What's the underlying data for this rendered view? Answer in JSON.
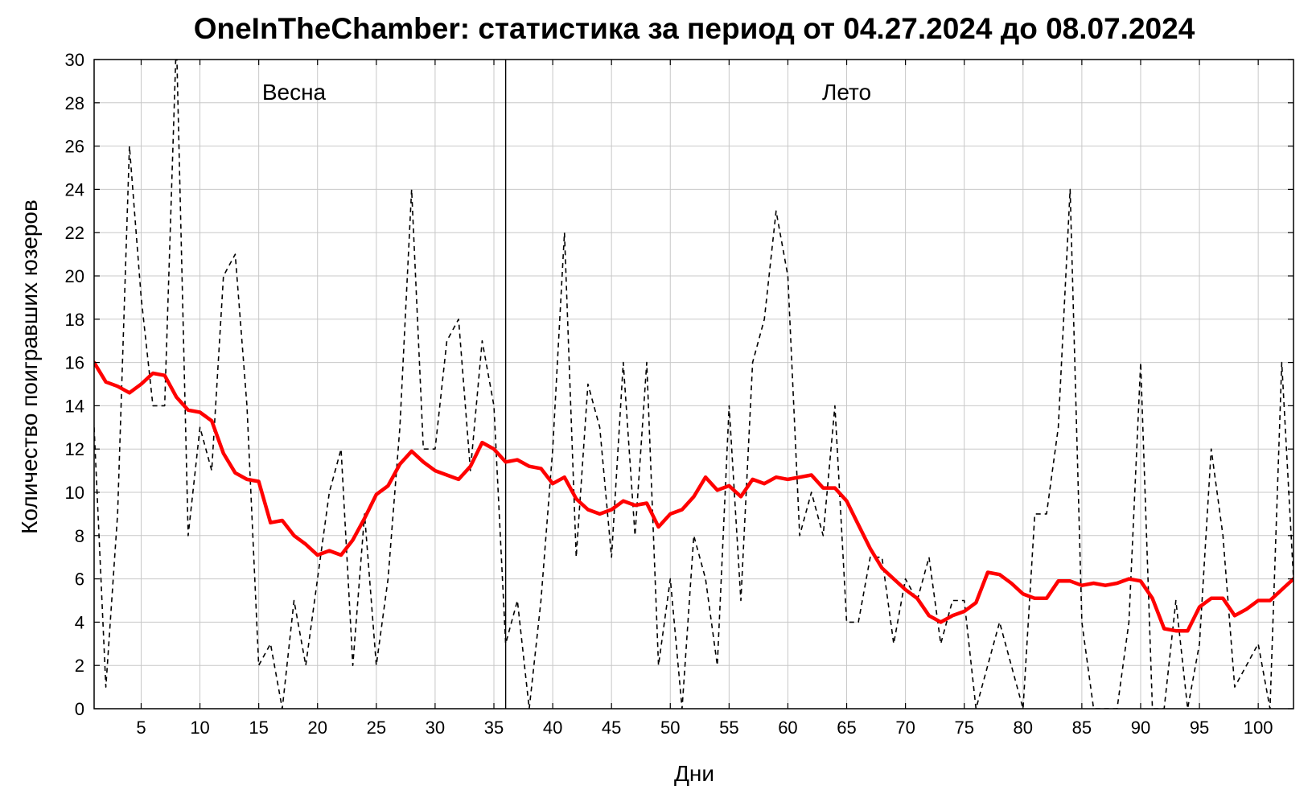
{
  "chart_data": {
    "type": "line",
    "title": "OneInTheChamber: статистика за период от 04.27.2024 до 08.07.2024",
    "xlabel": "Дни",
    "ylabel": "Количество поигравших юзеров",
    "xlim": [
      1,
      103
    ],
    "ylim": [
      0,
      30
    ],
    "x_ticks": [
      5,
      10,
      15,
      20,
      25,
      30,
      35,
      40,
      45,
      50,
      55,
      60,
      65,
      70,
      75,
      80,
      85,
      90,
      95,
      100
    ],
    "y_ticks": [
      0,
      2,
      4,
      6,
      8,
      10,
      12,
      14,
      16,
      18,
      20,
      22,
      24,
      26,
      28,
      30
    ],
    "grid": true,
    "legend": "none",
    "season_divider_x": 36,
    "seasons": [
      {
        "label": "Весна",
        "x": 18
      },
      {
        "label": "Лето",
        "x": 65
      }
    ],
    "series": [
      {
        "style": "dashed",
        "color": "#000000",
        "values": [
          13,
          1,
          9,
          26,
          19,
          14,
          14,
          31,
          8,
          13,
          11,
          20,
          21,
          14,
          2,
          3,
          0,
          5,
          2,
          6,
          10,
          12,
          2,
          9,
          2,
          6,
          13,
          24,
          12,
          12,
          17,
          18,
          11,
          17,
          14,
          3,
          5,
          0,
          5,
          12,
          22,
          7,
          15,
          13,
          7,
          16,
          8,
          16,
          2,
          6,
          0,
          8,
          6,
          2,
          14,
          5,
          16,
          18,
          23,
          20,
          8,
          10,
          8,
          14,
          4,
          4,
          7,
          7,
          3,
          6,
          5,
          7,
          3,
          5,
          5,
          0,
          2,
          4,
          2,
          0,
          9,
          9,
          13,
          24,
          4,
          0,
          0,
          0,
          4,
          16,
          0,
          0,
          5,
          0,
          3,
          12,
          8,
          1,
          2,
          3,
          0,
          16,
          6
        ]
      },
      {
        "style": "solid",
        "color": "#ff0000",
        "values": [
          16.0,
          15.1,
          14.9,
          14.6,
          15.0,
          15.5,
          15.4,
          14.4,
          13.8,
          13.7,
          13.3,
          11.8,
          10.9,
          10.6,
          10.5,
          8.6,
          8.7,
          8.0,
          7.6,
          7.1,
          7.3,
          7.1,
          7.8,
          8.8,
          9.9,
          10.3,
          11.3,
          11.9,
          11.4,
          11.0,
          10.8,
          10.6,
          11.2,
          12.3,
          12.0,
          11.4,
          11.5,
          11.2,
          11.1,
          10.4,
          10.7,
          9.7,
          9.2,
          9.0,
          9.2,
          9.6,
          9.4,
          9.5,
          8.4,
          9.0,
          9.2,
          9.8,
          10.7,
          10.1,
          10.3,
          9.8,
          10.6,
          10.4,
          10.7,
          10.6,
          10.7,
          10.8,
          10.2,
          10.2,
          9.6,
          8.5,
          7.4,
          6.5,
          6.0,
          5.5,
          5.1,
          4.3,
          4.0,
          4.3,
          4.5,
          4.9,
          6.3,
          6.2,
          5.8,
          5.3,
          5.1,
          5.1,
          5.9,
          5.9,
          5.7,
          5.8,
          5.7,
          5.8,
          6.0,
          5.9,
          5.1,
          3.7,
          3.6,
          3.6,
          4.7,
          5.1,
          5.1,
          4.3,
          4.6,
          5.0,
          5.0,
          5.5,
          6.0
        ]
      }
    ]
  }
}
